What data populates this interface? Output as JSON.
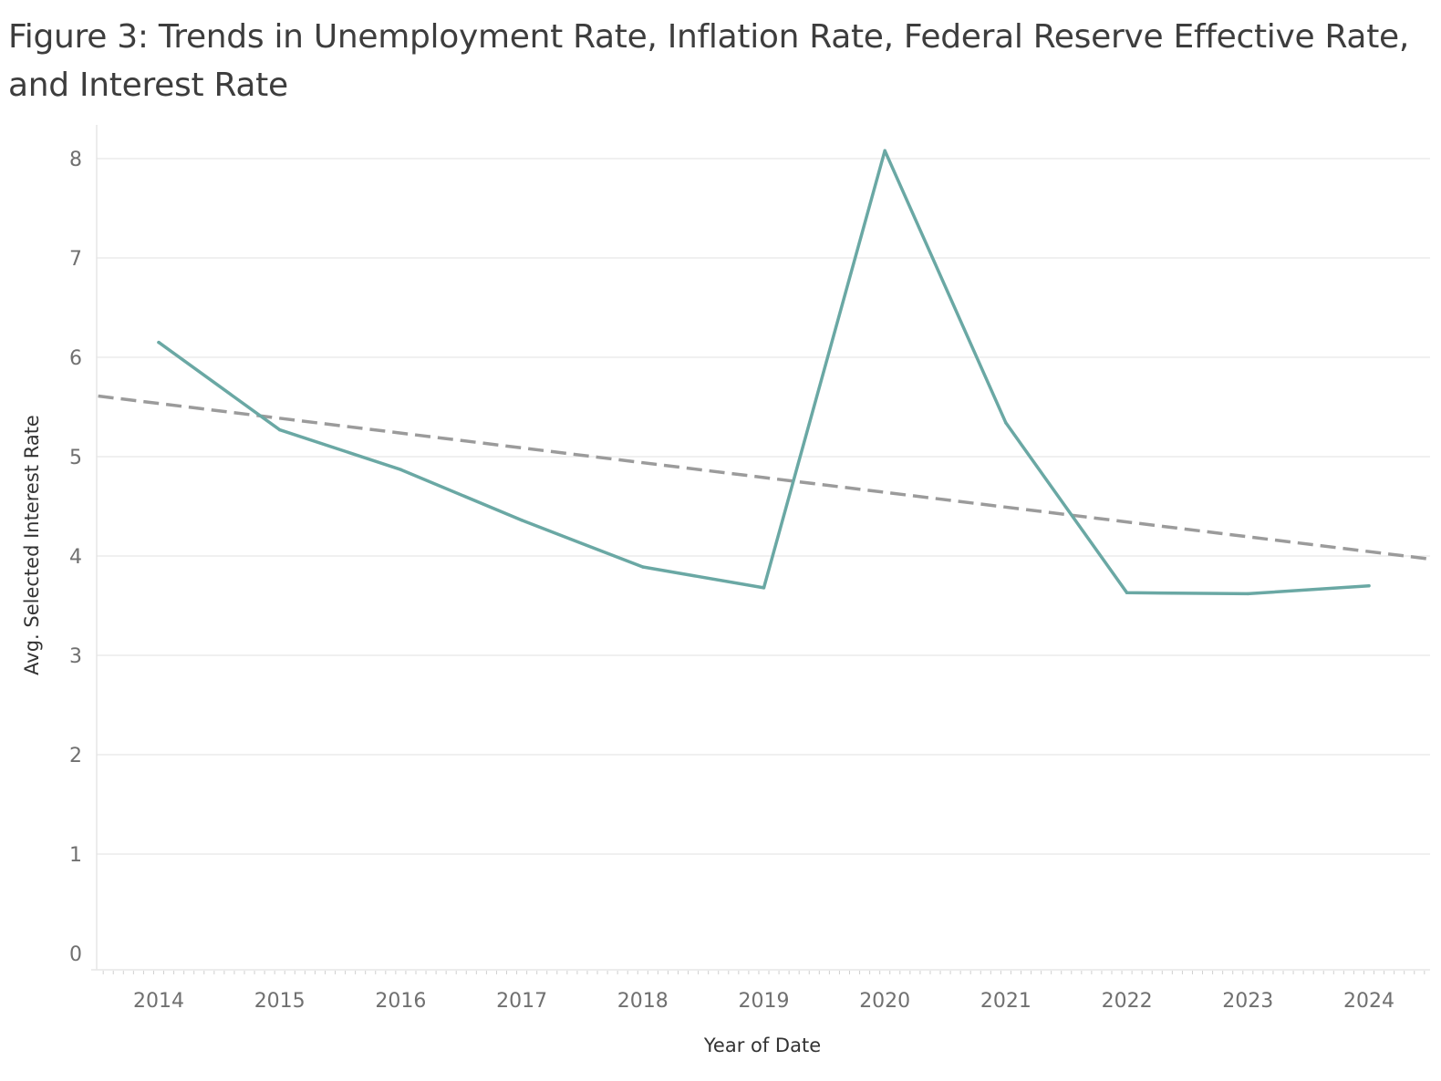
{
  "chart_data": {
    "type": "line",
    "title": "Figure 3: Trends in Unemployment Rate, Inflation Rate, Federal Reserve Effective Rate, and Interest Rate",
    "xlabel": "Year of Date",
    "ylabel": "Avg. Selected Interest Rate",
    "x": [
      2014,
      2015,
      2016,
      2017,
      2018,
      2019,
      2020,
      2021,
      2022,
      2023,
      2024
    ],
    "series": [
      {
        "values": [
          6.15,
          5.27,
          4.87,
          4.36,
          3.89,
          3.68,
          8.08,
          5.34,
          3.63,
          3.62,
          3.7
        ],
        "color": "#6aa8a4",
        "style": "solid"
      }
    ],
    "trend_line": {
      "style": "dashed",
      "color": "#9b9b9b",
      "x": [
        2013.5,
        2024.5
      ],
      "y": [
        5.61,
        3.97
      ]
    },
    "xticks": [
      "2014",
      "2015",
      "2016",
      "2017",
      "2018",
      "2019",
      "2020",
      "2021",
      "2022",
      "2023",
      "2024"
    ],
    "yticks": [
      "0",
      "1",
      "2",
      "3",
      "4",
      "5",
      "6",
      "7",
      "8"
    ],
    "xlim": [
      2013.5,
      2024.5
    ],
    "ylim": [
      -0.15,
      8.5
    ],
    "grid": "horizontal",
    "legend": "none"
  }
}
